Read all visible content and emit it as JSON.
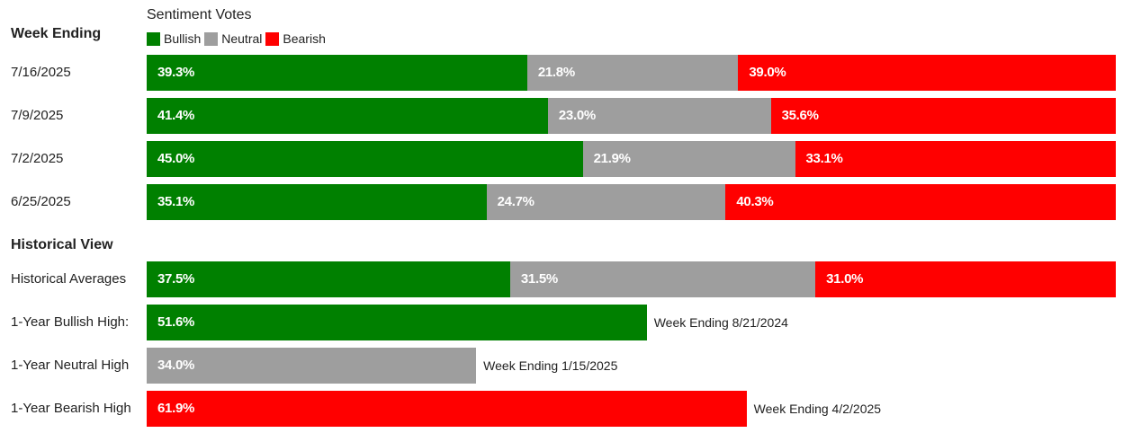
{
  "colors": {
    "bullish": "#008000",
    "neutral": "#9e9e9e",
    "bearish": "#ff0000"
  },
  "legend": {
    "title": "Sentiment Votes",
    "items": [
      {
        "key": "bullish",
        "label": "Bullish"
      },
      {
        "key": "neutral",
        "label": "Neutral"
      },
      {
        "key": "bearish",
        "label": "Bearish"
      }
    ]
  },
  "sections": {
    "week_ending": "Week Ending",
    "historical": "Historical View"
  },
  "chart_data": {
    "type": "bar",
    "orientation": "horizontal",
    "stacked": true,
    "title": "Sentiment Votes",
    "series_names": [
      "Bullish",
      "Neutral",
      "Bearish"
    ],
    "weekly": [
      {
        "label": "7/16/2025",
        "bullish": 39.3,
        "neutral": 21.8,
        "bearish": 39.0,
        "bullish_text": "39.3%",
        "neutral_text": "21.8%",
        "bearish_text": "39.0%"
      },
      {
        "label": "7/9/2025",
        "bullish": 41.4,
        "neutral": 23.0,
        "bearish": 35.6,
        "bullish_text": "41.4%",
        "neutral_text": "23.0%",
        "bearish_text": "35.6%"
      },
      {
        "label": "7/2/2025",
        "bullish": 45.0,
        "neutral": 21.9,
        "bearish": 33.1,
        "bullish_text": "45.0%",
        "neutral_text": "21.9%",
        "bearish_text": "33.1%"
      },
      {
        "label": "6/25/2025",
        "bullish": 35.1,
        "neutral": 24.7,
        "bearish": 40.3,
        "bullish_text": "35.1%",
        "neutral_text": "24.7%",
        "bearish_text": "40.3%"
      }
    ],
    "historical_averages": {
      "label": "Historical Averages",
      "bullish": 37.5,
      "neutral": 31.5,
      "bearish": 31.0,
      "bullish_text": "37.5%",
      "neutral_text": "31.5%",
      "bearish_text": "31.0%"
    },
    "highs": [
      {
        "label": "1-Year Bullish High:",
        "key": "bullish",
        "value": 51.6,
        "value_text": "51.6%",
        "note": "Week Ending 8/21/2024"
      },
      {
        "label": "1-Year Neutral High",
        "key": "neutral",
        "value": 34.0,
        "value_text": "34.0%",
        "note": "Week Ending 1/15/2025"
      },
      {
        "label": "1-Year Bearish High",
        "key": "bearish",
        "value": 61.9,
        "value_text": "61.9%",
        "note": "Week Ending 4/2/2025"
      }
    ],
    "xlim": [
      0,
      100
    ]
  }
}
